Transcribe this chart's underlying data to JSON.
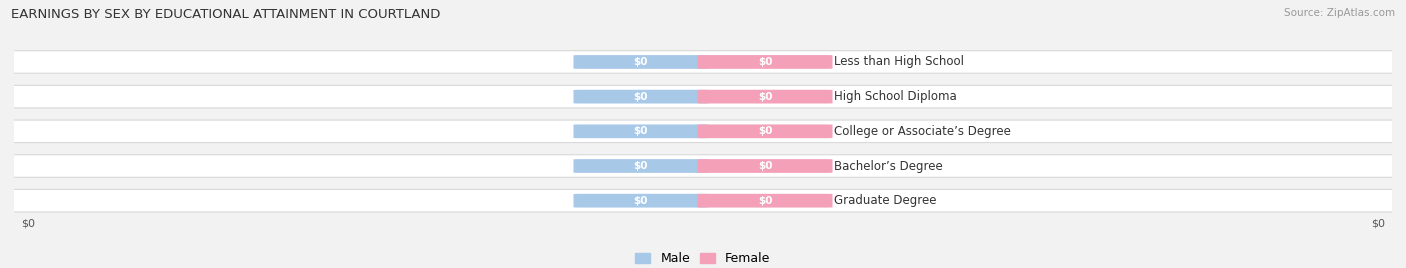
{
  "title": "EARNINGS BY SEX BY EDUCATIONAL ATTAINMENT IN COURTLAND",
  "source": "Source: ZipAtlas.com",
  "categories": [
    "Less than High School",
    "High School Diploma",
    "College or Associate’s Degree",
    "Bachelor’s Degree",
    "Graduate Degree"
  ],
  "male_values": [
    0,
    0,
    0,
    0,
    0
  ],
  "female_values": [
    0,
    0,
    0,
    0,
    0
  ],
  "male_color": "#a8c8e8",
  "female_color": "#f4a0b8",
  "male_label": "Male",
  "female_label": "Female",
  "bg_color": "#f2f2f2",
  "row_bg_color": "#ffffff",
  "row_border_color": "#d8d8d8",
  "xlabel_left": "$0",
  "xlabel_right": "$0",
  "title_fontsize": 9.5,
  "source_fontsize": 7.5,
  "label_fontsize": 8.5,
  "bar_value_fontsize": 7.5,
  "legend_fontsize": 9
}
